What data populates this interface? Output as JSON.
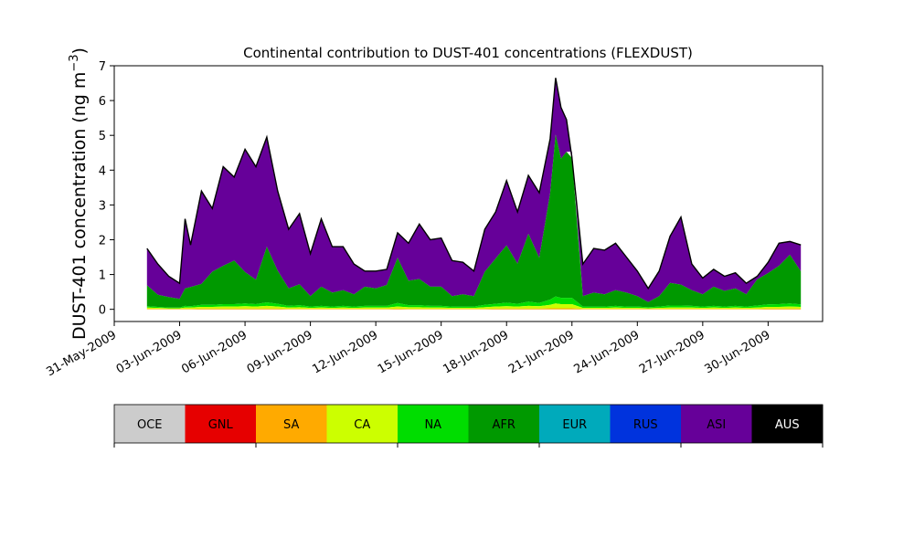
{
  "chart_data": {
    "type": "area",
    "title": "Continental contribution to DUST-401 concentrations (FLEXDUST)",
    "ylabel": "DUST-401 concentration (ng m",
    "ylabel_sup": "−3",
    "ylabel_close": ")",
    "xlabel": "",
    "stacked": true,
    "ylim": [
      -0.35,
      7
    ],
    "yticks": [
      0,
      1,
      2,
      3,
      4,
      5,
      6,
      7
    ],
    "xlim": [
      "2009-05-31T00:00",
      "2009-07-02T12:00"
    ],
    "xticks": [
      "31-May-2009",
      "03-Jun-2009",
      "06-Jun-2009",
      "09-Jun-2009",
      "12-Jun-2009",
      "15-Jun-2009",
      "18-Jun-2009",
      "21-Jun-2009",
      "24-Jun-2009",
      "27-Jun-2009",
      "30-Jun-2009"
    ],
    "series": [
      {
        "name": "OCE",
        "color": "#cccccc"
      },
      {
        "name": "GNL",
        "color": "#e60000"
      },
      {
        "name": "SA",
        "color": "#ffaa00"
      },
      {
        "name": "CA",
        "color": "#ccff00"
      },
      {
        "name": "NA",
        "color": "#00dd00"
      },
      {
        "name": "AFR",
        "color": "#009900"
      },
      {
        "name": "EUR",
        "color": "#00aabb"
      },
      {
        "name": "RUS",
        "color": "#0033dd"
      },
      {
        "name": "ASI",
        "color": "#660099"
      },
      {
        "name": "AUS",
        "color": "#000000"
      }
    ],
    "x": [
      "2009-06-01T12:00",
      "2009-06-02T00:00",
      "2009-06-02T12:00",
      "2009-06-03T00:00",
      "2009-06-03T06:00",
      "2009-06-03T12:00",
      "2009-06-04T00:00",
      "2009-06-04T12:00",
      "2009-06-05T00:00",
      "2009-06-05T12:00",
      "2009-06-06T00:00",
      "2009-06-06T12:00",
      "2009-06-07T00:00",
      "2009-06-07T12:00",
      "2009-06-08T00:00",
      "2009-06-08T12:00",
      "2009-06-09T00:00",
      "2009-06-09T12:00",
      "2009-06-10T00:00",
      "2009-06-10T12:00",
      "2009-06-11T00:00",
      "2009-06-11T12:00",
      "2009-06-12T00:00",
      "2009-06-12T12:00",
      "2009-06-13T00:00",
      "2009-06-13T12:00",
      "2009-06-14T00:00",
      "2009-06-14T12:00",
      "2009-06-15T00:00",
      "2009-06-15T12:00",
      "2009-06-16T00:00",
      "2009-06-16T12:00",
      "2009-06-17T00:00",
      "2009-06-17T12:00",
      "2009-06-18T00:00",
      "2009-06-18T12:00",
      "2009-06-19T00:00",
      "2009-06-19T12:00",
      "2009-06-20T00:00",
      "2009-06-20T06:00",
      "2009-06-20T12:00",
      "2009-06-20T18:00",
      "2009-06-21T00:00",
      "2009-06-21T12:00",
      "2009-06-22T00:00",
      "2009-06-22T12:00",
      "2009-06-23T00:00",
      "2009-06-23T12:00",
      "2009-06-24T00:00",
      "2009-06-24T12:00",
      "2009-06-25T00:00",
      "2009-06-25T12:00",
      "2009-06-26T00:00",
      "2009-06-26T12:00",
      "2009-06-27T00:00",
      "2009-06-27T12:00",
      "2009-06-28T00:00",
      "2009-06-28T12:00",
      "2009-06-29T00:00",
      "2009-06-29T12:00",
      "2009-06-30T00:00",
      "2009-06-30T12:00",
      "2009-07-01T00:00",
      "2009-07-01T12:00"
    ],
    "total": [
      1.75,
      1.3,
      0.95,
      0.75,
      2.6,
      1.85,
      3.4,
      2.9,
      4.1,
      3.8,
      4.6,
      4.1,
      4.95,
      3.4,
      2.3,
      2.75,
      1.6,
      2.6,
      1.8,
      1.8,
      1.3,
      1.1,
      1.1,
      1.15,
      2.2,
      1.9,
      2.45,
      2.0,
      2.05,
      1.4,
      1.35,
      1.1,
      2.3,
      2.8,
      3.7,
      2.8,
      3.85,
      3.35,
      4.9,
      6.65,
      5.8,
      5.45,
      4.35,
      1.3,
      1.75,
      1.7,
      1.9,
      1.5,
      1.1,
      0.6,
      1.1,
      2.1,
      2.65,
      1.3,
      0.9,
      1.15,
      0.95,
      1.05,
      0.75,
      0.95,
      1.35,
      1.9,
      1.95,
      1.85
    ],
    "AFR": [
      0.6,
      0.35,
      0.3,
      0.25,
      0.5,
      0.55,
      0.6,
      0.95,
      1.1,
      1.25,
      0.9,
      0.7,
      1.6,
      0.95,
      0.5,
      0.6,
      0.3,
      0.55,
      0.4,
      0.45,
      0.35,
      0.55,
      0.5,
      0.6,
      1.3,
      0.7,
      0.75,
      0.55,
      0.55,
      0.3,
      0.35,
      0.3,
      0.95,
      1.3,
      1.65,
      1.15,
      1.95,
      1.3,
      3.05,
      4.65,
      4.0,
      4.2,
      4.2,
      0.3,
      0.4,
      0.35,
      0.45,
      0.4,
      0.3,
      0.15,
      0.3,
      0.65,
      0.6,
      0.45,
      0.35,
      0.55,
      0.45,
      0.5,
      0.35,
      0.75,
      0.9,
      1.1,
      1.4,
      0.95
    ],
    "NA": [
      0.04,
      0.03,
      0.02,
      0.02,
      0.05,
      0.04,
      0.06,
      0.06,
      0.07,
      0.07,
      0.08,
      0.07,
      0.1,
      0.08,
      0.05,
      0.06,
      0.04,
      0.05,
      0.04,
      0.05,
      0.04,
      0.05,
      0.05,
      0.05,
      0.1,
      0.06,
      0.06,
      0.05,
      0.05,
      0.04,
      0.04,
      0.04,
      0.07,
      0.08,
      0.1,
      0.08,
      0.12,
      0.09,
      0.15,
      0.2,
      0.18,
      0.18,
      0.18,
      0.04,
      0.04,
      0.04,
      0.05,
      0.04,
      0.04,
      0.03,
      0.04,
      0.06,
      0.06,
      0.05,
      0.04,
      0.05,
      0.04,
      0.05,
      0.04,
      0.06,
      0.07,
      0.08,
      0.09,
      0.07
    ],
    "CA": [
      0.04,
      0.03,
      0.02,
      0.02,
      0.04,
      0.04,
      0.05,
      0.05,
      0.06,
      0.06,
      0.07,
      0.06,
      0.08,
      0.06,
      0.04,
      0.05,
      0.03,
      0.04,
      0.03,
      0.04,
      0.03,
      0.04,
      0.04,
      0.04,
      0.06,
      0.05,
      0.05,
      0.04,
      0.04,
      0.03,
      0.03,
      0.03,
      0.05,
      0.06,
      0.07,
      0.06,
      0.08,
      0.07,
      0.1,
      0.14,
      0.12,
      0.12,
      0.12,
      0.03,
      0.03,
      0.03,
      0.04,
      0.03,
      0.03,
      0.02,
      0.03,
      0.04,
      0.04,
      0.04,
      0.03,
      0.04,
      0.03,
      0.04,
      0.03,
      0.04,
      0.05,
      0.05,
      0.06,
      0.05
    ],
    "SA": [
      0.01,
      0.01,
      0.01,
      0.01,
      0.01,
      0.01,
      0.02,
      0.02,
      0.02,
      0.02,
      0.02,
      0.02,
      0.02,
      0.02,
      0.01,
      0.01,
      0.01,
      0.01,
      0.01,
      0.01,
      0.01,
      0.01,
      0.01,
      0.01,
      0.02,
      0.01,
      0.01,
      0.01,
      0.01,
      0.01,
      0.01,
      0.01,
      0.01,
      0.02,
      0.02,
      0.02,
      0.02,
      0.02,
      0.03,
      0.03,
      0.03,
      0.03,
      0.03,
      0.01,
      0.01,
      0.01,
      0.01,
      0.01,
      0.01,
      0.01,
      0.01,
      0.01,
      0.01,
      0.01,
      0.01,
      0.01,
      0.01,
      0.01,
      0.01,
      0.01,
      0.02,
      0.02,
      0.02,
      0.02
    ]
  }
}
